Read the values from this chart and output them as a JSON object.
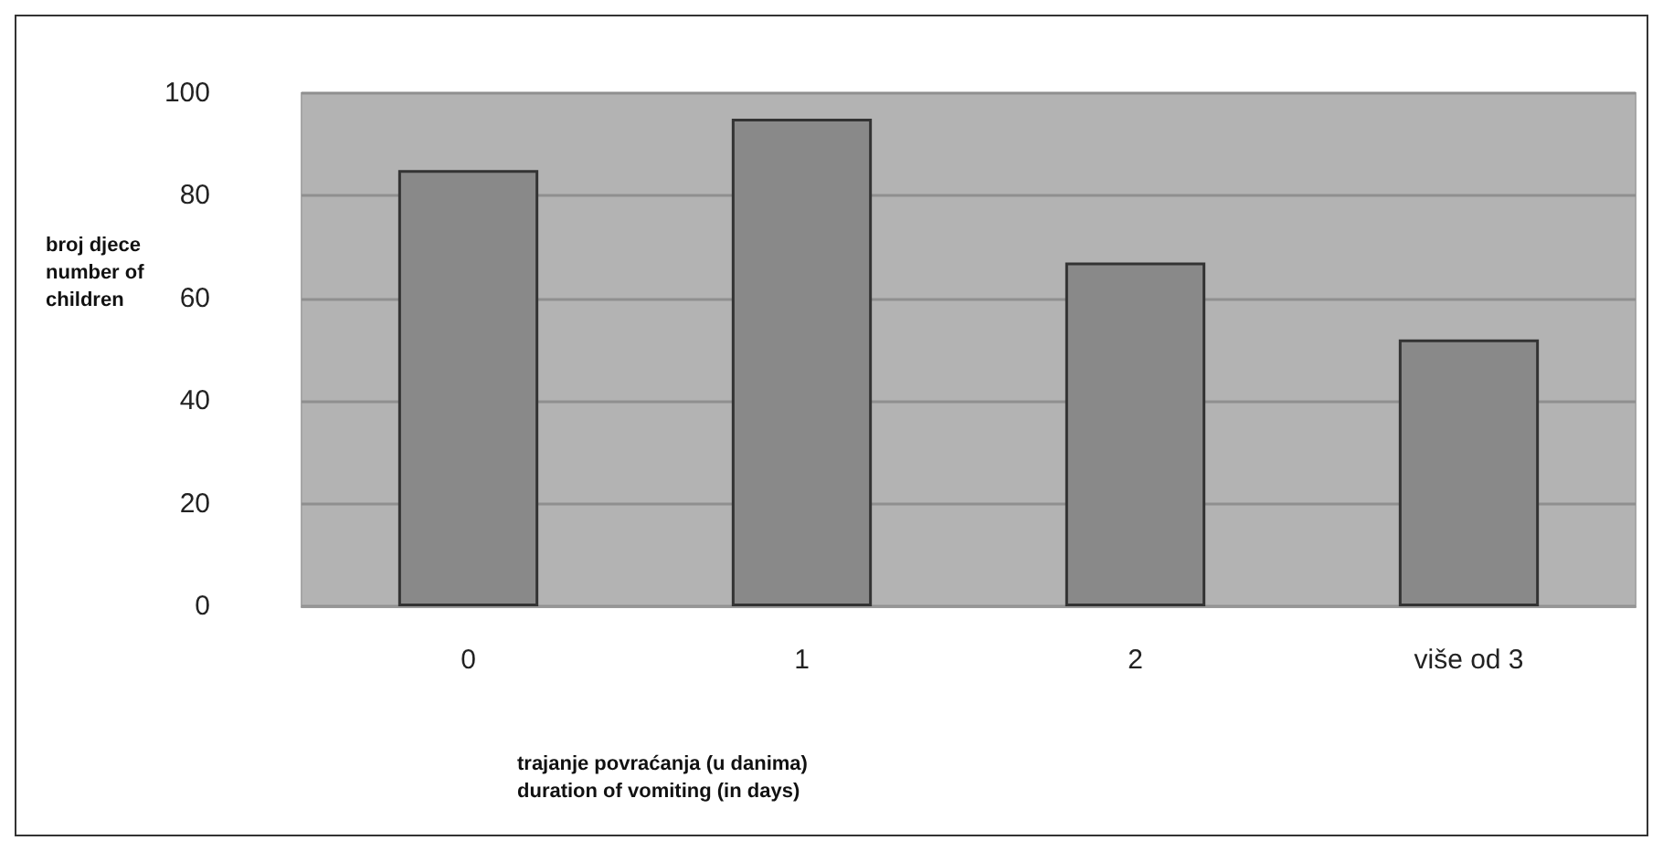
{
  "chart_data": {
    "type": "bar",
    "xlabel": "trajanje povraćanja (u danima)\nduration of vomiting (in days)",
    "ylabel": "broj djece number of children",
    "categories": [
      "0",
      "1",
      "2",
      "više od 3"
    ],
    "values": [
      85,
      95,
      67,
      52
    ],
    "color": "#898989",
    "ylim": [
      0,
      100
    ],
    "yticks": [
      0,
      20,
      40,
      60,
      80,
      100
    ],
    "grid": "y"
  }
}
